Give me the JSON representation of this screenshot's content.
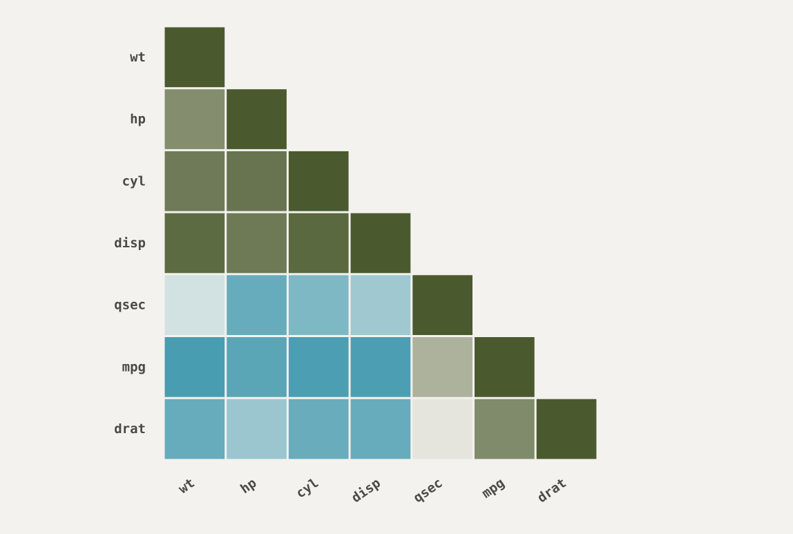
{
  "chart_data": {
    "type": "heatmap",
    "title": "",
    "xlabel": "",
    "ylabel": "",
    "variables": [
      "wt",
      "hp",
      "cyl",
      "disp",
      "qsec",
      "mpg",
      "drat"
    ],
    "triangle": "lower",
    "value_range": [
      -1,
      1
    ],
    "colors": {
      "positive": "#4a5a2e",
      "neutral": "#f4f2ee",
      "negative": "#2e90a8",
      "background": "#f4f2ee",
      "label": "#4a4a46"
    },
    "matrix": [
      [
        1.0
      ],
      [
        0.66,
        1.0
      ],
      [
        0.78,
        0.83,
        1.0
      ],
      [
        0.89,
        0.79,
        0.9,
        1.0
      ],
      [
        -0.17,
        -0.71,
        -0.59,
        -0.43,
        1.0
      ],
      [
        -0.87,
        -0.78,
        -0.85,
        -0.85,
        0.42,
        1.0
      ],
      [
        -0.71,
        -0.45,
        -0.7,
        -0.71,
        0.09,
        0.68,
        1.0
      ]
    ]
  }
}
